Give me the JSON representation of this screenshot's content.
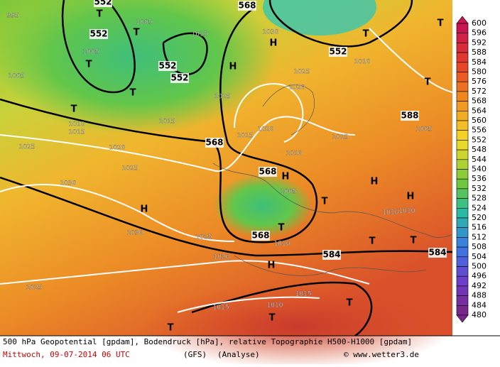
{
  "legend": {
    "values": [
      600,
      596,
      592,
      588,
      584,
      580,
      576,
      572,
      568,
      564,
      560,
      556,
      552,
      548,
      544,
      540,
      536,
      532,
      528,
      524,
      520,
      516,
      512,
      508,
      504,
      500,
      496,
      492,
      488,
      484,
      480
    ]
  },
  "map_labels": [
    "552",
    "T",
    "1005",
    "T",
    "552",
    "1015",
    "1005",
    "T",
    "552",
    "552",
    "1005",
    "T",
    "T",
    "1010",
    "1015",
    "1015",
    "1025",
    "568",
    "1030",
    "H",
    "H",
    "552",
    "T",
    "T",
    "1010",
    "1025",
    "1020",
    "T",
    "588",
    "1005",
    "1015",
    "1020",
    "1015",
    "568",
    "1010",
    "1025",
    "1020",
    "1025",
    "1030",
    "568",
    "H",
    "1005",
    "H",
    "H",
    "T",
    "1010",
    "1010",
    "H",
    "1030",
    "1025",
    "568",
    "T",
    "1010",
    "584",
    "T",
    "T",
    "584",
    "1020",
    "H",
    "1025",
    "1015",
    "T",
    "1015",
    "1010",
    "T",
    "T",
    "995"
  ],
  "caption": {
    "line1": "500 hPa Geopotential [gpdam], Bodendruck [hPa], relative Topographie H500-H1000 [gpdam]",
    "date": "Mittwoch, 09-07-2014  06 UTC",
    "model": "(GFS)",
    "analysis": "(Analyse)",
    "credit": "© www.wetter3.de"
  }
}
